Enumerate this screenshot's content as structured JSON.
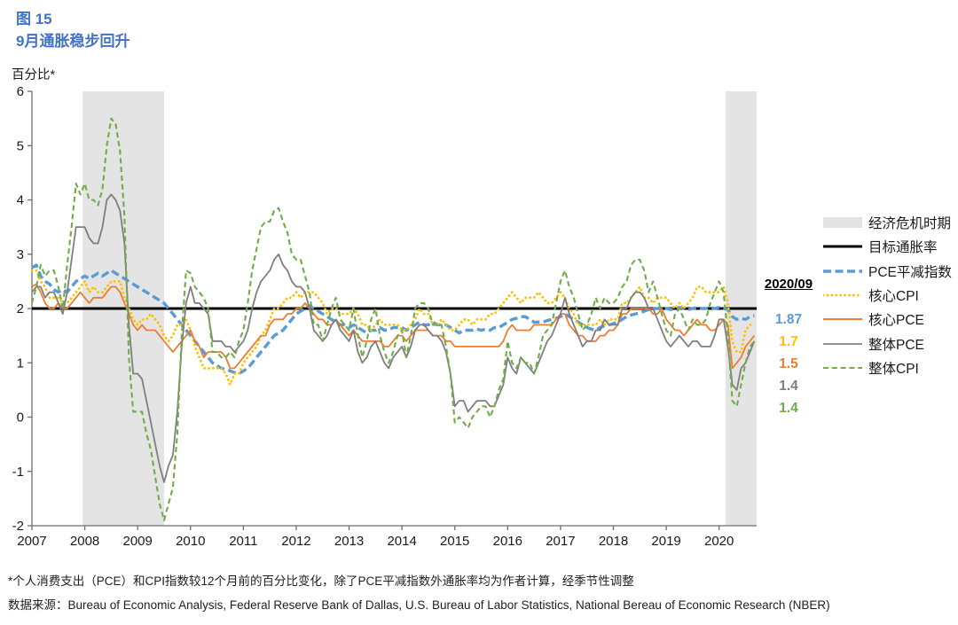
{
  "header": {
    "figure_label": "图 15",
    "title": "9月通胀稳步回升"
  },
  "chart": {
    "y_axis_unit": "百分比*"
  },
  "annotation": {
    "header": "2020/09",
    "values": [
      {
        "text": "1.87",
        "color": "#5B9BD5"
      },
      {
        "text": "1.7",
        "color": "#FFC000"
      },
      {
        "text": "1.5",
        "color": "#ED7D31"
      },
      {
        "text": "1.4",
        "color": "#7F7F7F"
      },
      {
        "text": "1.4",
        "color": "#70AD47"
      }
    ]
  },
  "legend": {
    "items": [
      {
        "label": "经济危机时期",
        "swatch": "band",
        "color": "#E3E3E3"
      },
      {
        "label": "目标通胀率",
        "swatch": "solid",
        "color": "#000000",
        "width": 3
      },
      {
        "label": "PCE平减指数",
        "swatch": "long-dash",
        "color": "#5B9BD5",
        "width": 3.4
      },
      {
        "label": "核心CPI",
        "swatch": "dot",
        "color": "#FFC000",
        "width": 2.8
      },
      {
        "label": "核心PCE",
        "swatch": "solid",
        "color": "#ED7D31",
        "width": 1.9
      },
      {
        "label": "整体PCE",
        "swatch": "solid",
        "color": "#7F7F7F",
        "width": 1.7
      },
      {
        "label": "整体CPI",
        "swatch": "short-dash",
        "color": "#70AD47",
        "width": 2.1
      }
    ]
  },
  "footnotes": [
    "*个人消费支出（PCE）和CPI指数较12个月前的百分比变化，除了PCE平减指数外通胀率均为作者计算，经季节性调整",
    "数据来源：Bureau of Economic Analysis, Federal Reserve Bank of Dallas, U.S. Bureau of Labor Statistics, National Bereau of Economic Research (NBER)"
  ],
  "chart_data": {
    "type": "line",
    "title": "9月通胀稳步回升",
    "xlabel": "",
    "ylabel": "百分比*",
    "xlim": [
      2007,
      2020.71
    ],
    "ylim": [
      -2,
      6
    ],
    "x_ticks": [
      2007,
      2008,
      2009,
      2010,
      2011,
      2012,
      2013,
      2014,
      2015,
      2016,
      2017,
      2018,
      2019,
      2020
    ],
    "y_ticks": [
      -2,
      -1,
      0,
      1,
      2,
      3,
      4,
      5,
      6
    ],
    "grid": false,
    "legend_position": "right",
    "x_start": 2007.0,
    "x_step_years": 0.0833333,
    "target_line": {
      "label": "目标通胀率",
      "value": 2,
      "color": "#000000"
    },
    "recession_bands": [
      [
        2007.96,
        2009.5
      ],
      [
        2020.12,
        2020.71
      ]
    ],
    "latest_label": "2020/09",
    "series": [
      {
        "name": "PCE平减指数",
        "color": "#5B9BD5",
        "style": "long-dash",
        "latest": 1.87,
        "values": [
          2.75,
          2.8,
          2.6,
          2.5,
          2.45,
          2.35,
          2.3,
          2.35,
          2.3,
          2.4,
          2.5,
          2.55,
          2.6,
          2.55,
          2.6,
          2.65,
          2.6,
          2.65,
          2.7,
          2.65,
          2.6,
          2.55,
          2.5,
          2.45,
          2.4,
          2.35,
          2.3,
          2.25,
          2.2,
          2.15,
          2.1,
          2.0,
          1.9,
          1.8,
          1.7,
          1.6,
          1.5,
          1.4,
          1.3,
          1.2,
          1.1,
          1.0,
          0.95,
          0.9,
          0.88,
          0.85,
          0.82,
          0.8,
          0.85,
          0.9,
          1.0,
          1.1,
          1.2,
          1.3,
          1.4,
          1.5,
          1.55,
          1.6,
          1.7,
          1.8,
          1.9,
          1.95,
          2.0,
          2.05,
          2.0,
          1.95,
          1.9,
          1.85,
          1.8,
          1.75,
          1.7,
          1.7,
          1.65,
          1.7,
          1.65,
          1.6,
          1.55,
          1.6,
          1.6,
          1.65,
          1.6,
          1.6,
          1.65,
          1.65,
          1.65,
          1.6,
          1.65,
          1.7,
          1.75,
          1.7,
          1.7,
          1.75,
          1.7,
          1.7,
          1.7,
          1.65,
          1.6,
          1.55,
          1.6,
          1.6,
          1.6,
          1.62,
          1.6,
          1.62,
          1.6,
          1.65,
          1.65,
          1.7,
          1.75,
          1.8,
          1.82,
          1.85,
          1.85,
          1.8,
          1.75,
          1.75,
          1.75,
          1.78,
          1.8,
          1.82,
          1.85,
          1.9,
          1.85,
          1.8,
          1.75,
          1.7,
          1.65,
          1.62,
          1.6,
          1.65,
          1.68,
          1.7,
          1.72,
          1.75,
          1.8,
          1.85,
          1.88,
          1.9,
          1.92,
          1.95,
          1.98,
          2.0,
          2.0,
          2.0,
          2.0,
          1.98,
          2.0,
          2.02,
          2.0,
          1.98,
          2.0,
          2.02,
          2.0,
          2.0,
          2.02,
          2.0,
          2.02,
          2.0,
          1.98,
          1.85,
          1.8,
          1.82,
          1.8,
          1.85,
          1.87
        ]
      },
      {
        "name": "核心CPI",
        "color": "#FFC000",
        "style": "dot",
        "latest": 1.7,
        "values": [
          2.7,
          2.7,
          2.5,
          2.4,
          2.2,
          2.2,
          2.2,
          2.1,
          2.1,
          2.2,
          2.3,
          2.4,
          2.5,
          2.3,
          2.4,
          2.3,
          2.3,
          2.4,
          2.5,
          2.5,
          2.5,
          2.2,
          2.0,
          1.8,
          1.7,
          1.8,
          1.8,
          1.9,
          1.8,
          1.7,
          1.5,
          1.4,
          1.5,
          1.7,
          1.7,
          1.8,
          1.6,
          1.3,
          1.1,
          0.9,
          0.9,
          0.9,
          0.9,
          0.9,
          0.8,
          0.6,
          0.8,
          0.8,
          1.0,
          1.1,
          1.2,
          1.3,
          1.5,
          1.6,
          1.8,
          2.0,
          2.0,
          2.1,
          2.2,
          2.2,
          2.3,
          2.2,
          2.3,
          2.3,
          2.3,
          2.2,
          2.1,
          1.9,
          2.0,
          2.0,
          1.9,
          1.9,
          1.9,
          2.0,
          1.9,
          1.7,
          1.7,
          1.6,
          1.7,
          1.8,
          1.7,
          1.7,
          1.7,
          1.7,
          1.6,
          1.6,
          1.7,
          1.8,
          2.0,
          1.9,
          1.9,
          1.7,
          1.7,
          1.8,
          1.7,
          1.6,
          1.6,
          1.7,
          1.8,
          1.8,
          1.7,
          1.8,
          1.8,
          1.8,
          1.9,
          1.9,
          2.0,
          2.1,
          2.2,
          2.3,
          2.2,
          2.1,
          2.2,
          2.2,
          2.2,
          2.3,
          2.2,
          2.1,
          2.1,
          2.2,
          2.3,
          2.2,
          2.0,
          1.9,
          1.7,
          1.7,
          1.7,
          1.7,
          1.7,
          1.8,
          1.7,
          1.8,
          1.8,
          1.8,
          2.1,
          2.1,
          2.2,
          2.3,
          2.4,
          2.2,
          2.2,
          2.1,
          2.2,
          2.2,
          2.2,
          2.1,
          2.0,
          2.1,
          2.0,
          2.1,
          2.2,
          2.4,
          2.4,
          2.3,
          2.3,
          2.3,
          2.3,
          2.4,
          2.1,
          1.4,
          1.2,
          1.2,
          1.6,
          1.7,
          1.7
        ]
      },
      {
        "name": "核心PCE",
        "color": "#ED7D31",
        "style": "solid",
        "latest": 1.5,
        "values": [
          2.4,
          2.45,
          2.3,
          2.1,
          2.0,
          2.0,
          2.1,
          2.0,
          2.0,
          2.1,
          2.2,
          2.3,
          2.2,
          2.1,
          2.2,
          2.2,
          2.2,
          2.3,
          2.4,
          2.4,
          2.3,
          2.1,
          1.9,
          1.7,
          1.6,
          1.7,
          1.6,
          1.6,
          1.6,
          1.5,
          1.4,
          1.3,
          1.2,
          1.3,
          1.4,
          1.5,
          1.6,
          1.4,
          1.3,
          1.1,
          1.2,
          1.2,
          1.2,
          1.2,
          1.1,
          0.9,
          0.9,
          1.0,
          1.1,
          1.2,
          1.3,
          1.4,
          1.5,
          1.5,
          1.7,
          1.8,
          1.8,
          1.8,
          1.9,
          1.9,
          2.0,
          2.0,
          2.1,
          2.0,
          1.9,
          1.8,
          1.8,
          1.7,
          1.7,
          1.8,
          1.7,
          1.6,
          1.5,
          1.6,
          1.5,
          1.4,
          1.4,
          1.4,
          1.4,
          1.4,
          1.3,
          1.3,
          1.4,
          1.5,
          1.5,
          1.4,
          1.5,
          1.6,
          1.6,
          1.6,
          1.6,
          1.5,
          1.5,
          1.5,
          1.4,
          1.4,
          1.3,
          1.3,
          1.3,
          1.3,
          1.3,
          1.3,
          1.3,
          1.3,
          1.3,
          1.3,
          1.3,
          1.4,
          1.6,
          1.7,
          1.6,
          1.6,
          1.6,
          1.6,
          1.7,
          1.7,
          1.7,
          1.7,
          1.7,
          1.8,
          1.9,
          1.9,
          1.7,
          1.6,
          1.5,
          1.5,
          1.4,
          1.4,
          1.4,
          1.5,
          1.5,
          1.6,
          1.6,
          1.7,
          1.9,
          1.9,
          2.0,
          2.0,
          2.0,
          2.0,
          2.0,
          1.9,
          1.9,
          2.0,
          1.8,
          1.7,
          1.6,
          1.6,
          1.5,
          1.6,
          1.7,
          1.8,
          1.7,
          1.7,
          1.6,
          1.6,
          1.7,
          1.8,
          1.7,
          0.9,
          1.0,
          1.1,
          1.3,
          1.4,
          1.5
        ]
      },
      {
        "name": "整体PCE",
        "color": "#7F7F7F",
        "style": "solid",
        "latest": 1.4,
        "values": [
          2.3,
          2.4,
          2.4,
          2.2,
          2.3,
          2.3,
          2.1,
          1.9,
          2.3,
          2.9,
          3.5,
          3.5,
          3.5,
          3.3,
          3.2,
          3.2,
          3.5,
          4.0,
          4.1,
          4.0,
          3.8,
          3.2,
          1.7,
          0.8,
          0.8,
          0.7,
          0.3,
          -0.1,
          -0.5,
          -0.9,
          -1.2,
          -0.9,
          -0.7,
          0.1,
          1.3,
          2.1,
          2.4,
          2.1,
          2.1,
          2.0,
          1.9,
          1.4,
          1.4,
          1.4,
          1.3,
          1.3,
          1.2,
          1.3,
          1.4,
          1.6,
          2.0,
          2.3,
          2.5,
          2.6,
          2.7,
          2.9,
          3.0,
          2.8,
          2.7,
          2.5,
          2.4,
          2.4,
          2.3,
          2.0,
          1.6,
          1.5,
          1.4,
          1.5,
          1.7,
          1.8,
          1.6,
          1.5,
          1.4,
          1.6,
          1.2,
          1.0,
          1.1,
          1.3,
          1.4,
          1.2,
          1.0,
          0.9,
          1.1,
          1.2,
          1.3,
          1.1,
          1.3,
          1.6,
          1.7,
          1.7,
          1.6,
          1.5,
          1.5,
          1.4,
          1.2,
          0.8,
          0.2,
          0.3,
          0.3,
          0.1,
          0.2,
          0.3,
          0.3,
          0.3,
          0.2,
          0.2,
          0.4,
          0.6,
          1.1,
          0.9,
          0.8,
          1.1,
          1.0,
          0.9,
          0.8,
          1.0,
          1.2,
          1.4,
          1.5,
          1.7,
          1.9,
          2.2,
          1.9,
          1.7,
          1.5,
          1.3,
          1.4,
          1.4,
          1.6,
          1.6,
          1.8,
          1.7,
          1.7,
          1.7,
          2.0,
          2.0,
          2.2,
          2.3,
          2.3,
          2.2,
          2.0,
          2.0,
          1.8,
          1.6,
          1.4,
          1.3,
          1.4,
          1.5,
          1.4,
          1.3,
          1.4,
          1.4,
          1.3,
          1.3,
          1.3,
          1.5,
          1.8,
          1.8,
          1.3,
          0.6,
          0.5,
          0.9,
          1.0,
          1.2,
          1.4
        ]
      },
      {
        "name": "整体CPI",
        "color": "#70AD47",
        "style": "short-dash",
        "latest": 1.4,
        "values": [
          2.1,
          2.4,
          2.8,
          2.6,
          2.7,
          2.7,
          2.4,
          2.0,
          2.8,
          3.5,
          4.3,
          4.1,
          4.3,
          4.0,
          4.0,
          3.9,
          4.2,
          5.0,
          5.5,
          5.4,
          4.9,
          3.7,
          1.1,
          0.1,
          0.1,
          0.1,
          -0.3,
          -0.6,
          -1.1,
          -1.6,
          -1.9,
          -1.6,
          -1.3,
          -0.3,
          1.5,
          2.7,
          2.65,
          2.4,
          2.3,
          2.2,
          2.0,
          1.2,
          1.2,
          1.1,
          1.1,
          1.2,
          1.1,
          1.4,
          1.6,
          2.1,
          2.7,
          3.1,
          3.5,
          3.6,
          3.6,
          3.8,
          3.85,
          3.6,
          3.4,
          3.0,
          2.9,
          2.9,
          2.6,
          2.3,
          1.7,
          1.7,
          1.4,
          1.7,
          2.0,
          2.2,
          1.8,
          1.7,
          1.6,
          2.0,
          1.5,
          1.1,
          1.4,
          1.8,
          2.0,
          1.5,
          1.2,
          1.0,
          1.2,
          1.5,
          1.6,
          1.1,
          1.5,
          2.0,
          2.1,
          2.1,
          2.0,
          1.7,
          1.7,
          1.7,
          1.3,
          0.8,
          -0.1,
          0.0,
          -0.1,
          -0.2,
          0.0,
          0.1,
          0.2,
          0.2,
          0.0,
          0.2,
          0.5,
          0.7,
          1.4,
          1.0,
          0.9,
          1.1,
          1.0,
          1.0,
          0.8,
          1.1,
          1.5,
          1.6,
          1.7,
          2.1,
          2.5,
          2.7,
          2.4,
          2.2,
          1.9,
          1.6,
          1.7,
          1.9,
          2.2,
          2.0,
          2.2,
          2.1,
          2.1,
          2.2,
          2.4,
          2.5,
          2.8,
          2.9,
          2.9,
          2.7,
          2.3,
          2.5,
          2.2,
          1.9,
          1.6,
          1.5,
          1.9,
          2.0,
          1.8,
          1.6,
          1.8,
          1.7,
          1.7,
          1.8,
          2.1,
          2.3,
          2.5,
          2.3,
          1.5,
          0.3,
          0.2,
          0.6,
          1.0,
          1.3,
          1.4
        ]
      }
    ]
  }
}
